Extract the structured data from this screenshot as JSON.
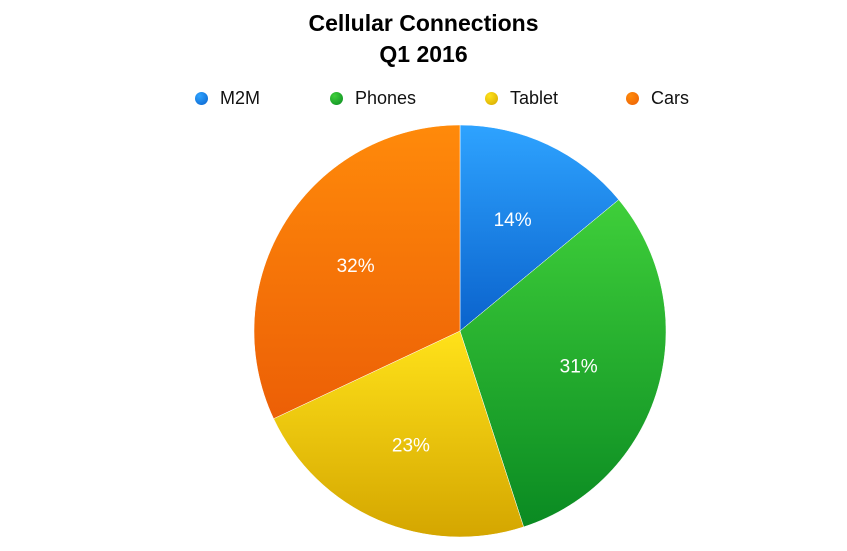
{
  "chart_data": {
    "type": "pie",
    "title_lines": [
      "Cellular Connections",
      "Q1 2016"
    ],
    "legend_placement": "top",
    "slices": [
      {
        "name": "M2M",
        "value": 14,
        "label": "14%",
        "color": "#1a88ee",
        "color_light": "#2ea3ff",
        "color_dark": "#0a62cc"
      },
      {
        "name": "Phones",
        "value": 31,
        "label": "31%",
        "color": "#1db32a",
        "color_light": "#3fcf3a",
        "color_dark": "#0a8a22"
      },
      {
        "name": "Tablet",
        "value": 23,
        "label": "23%",
        "color": "#f2cc00",
        "color_light": "#ffe21a",
        "color_dark": "#d4a600"
      },
      {
        "name": "Cars",
        "value": 32,
        "label": "32%",
        "color": "#f7780c",
        "color_light": "#ff8a0a",
        "color_dark": "#ec5f06"
      }
    ]
  }
}
